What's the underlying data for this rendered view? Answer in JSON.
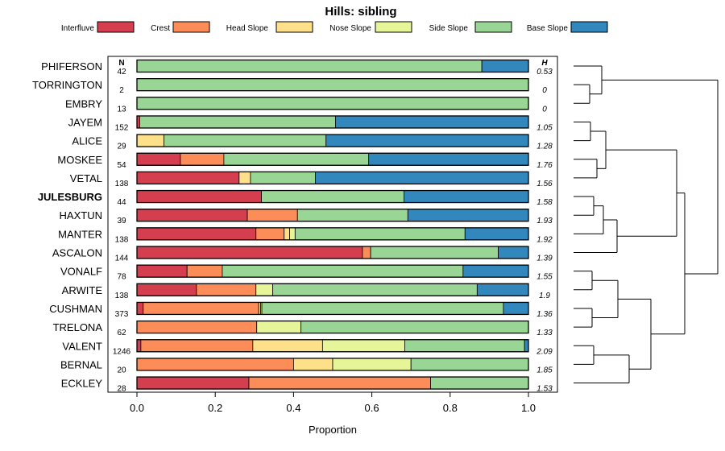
{
  "chart_data": {
    "type": "bar",
    "orientation": "horizontal-stacked",
    "title": "Hills: sibling",
    "xlabel": "Proportion",
    "xlim": [
      0,
      1
    ],
    "xticks": [
      "0.0",
      "0.2",
      "0.4",
      "0.6",
      "0.8",
      "1.0"
    ],
    "xtick_values": [
      0,
      0.2,
      0.4,
      0.6,
      0.8,
      1.0
    ],
    "n_header": "N",
    "h_header": "H",
    "highlight": "JULESBURG",
    "legend": [
      "Interfluve",
      "Crest",
      "Head Slope",
      "Nose Slope",
      "Side Slope",
      "Base Slope"
    ],
    "colors": [
      "#d53e4f",
      "#fc8d59",
      "#fee08b",
      "#e6f598",
      "#99d594",
      "#3288bd"
    ],
    "categories": [
      "PHIFERSON",
      "TORRINGTON",
      "EMBRY",
      "JAYEM",
      "ALICE",
      "MOSKEE",
      "VETAL",
      "JULESBURG",
      "HAXTUN",
      "MANTER",
      "ASCALON",
      "VONALF",
      "ARWITE",
      "CUSHMAN",
      "TRELONA",
      "VALENT",
      "BERNAL",
      "ECKLEY"
    ],
    "n": [
      "42",
      "2",
      "13",
      "152",
      "29",
      "54",
      "138",
      "44",
      "39",
      "138",
      "144",
      "78",
      "138",
      "373",
      "62",
      "1246",
      "20",
      "28"
    ],
    "h": [
      "0.53",
      "0",
      "0",
      "1.05",
      "1.28",
      "1.76",
      "1.56",
      "1.58",
      "1.93",
      "1.92",
      "1.39",
      "1.55",
      "1.9",
      "1.36",
      "1.33",
      "2.09",
      "1.85",
      "1.53"
    ],
    "series": [
      {
        "name": "Interfluve",
        "values": [
          0,
          0,
          0,
          0.007,
          0,
          0.111,
          0.261,
          0.318,
          0.282,
          0.304,
          0.576,
          0.128,
          0.152,
          0.016,
          0,
          0.01,
          0,
          0.286
        ]
      },
      {
        "name": "Crest",
        "values": [
          0,
          0,
          0,
          0,
          0,
          0.111,
          0,
          0,
          0.128,
          0.072,
          0.021,
          0.09,
          0.152,
          0.295,
          0.306,
          0.286,
          0.4,
          0.464
        ]
      },
      {
        "name": "Head Slope",
        "values": [
          0,
          0,
          0,
          0,
          0.069,
          0,
          0.029,
          0,
          0,
          0.014,
          0,
          0,
          0,
          0.005,
          0,
          0.178,
          0.1,
          0
        ]
      },
      {
        "name": "Nose Slope",
        "values": [
          0,
          0,
          0,
          0,
          0,
          0,
          0,
          0,
          0,
          0.014,
          0,
          0,
          0.043,
          0.003,
          0.113,
          0.21,
          0.2,
          0
        ]
      },
      {
        "name": "Side Slope",
        "values": [
          0.881,
          1,
          1,
          0.5,
          0.414,
          0.37,
          0.166,
          0.364,
          0.282,
          0.434,
          0.326,
          0.615,
          0.522,
          0.617,
          0.581,
          0.306,
          0.3,
          0.25
        ]
      },
      {
        "name": "Base Slope",
        "values": [
          0.119,
          0,
          0,
          0.493,
          0.517,
          0.408,
          0.544,
          0.318,
          0.308,
          0.162,
          0.077,
          0.167,
          0.131,
          0.064,
          0,
          0.01,
          0,
          0
        ]
      }
    ]
  }
}
